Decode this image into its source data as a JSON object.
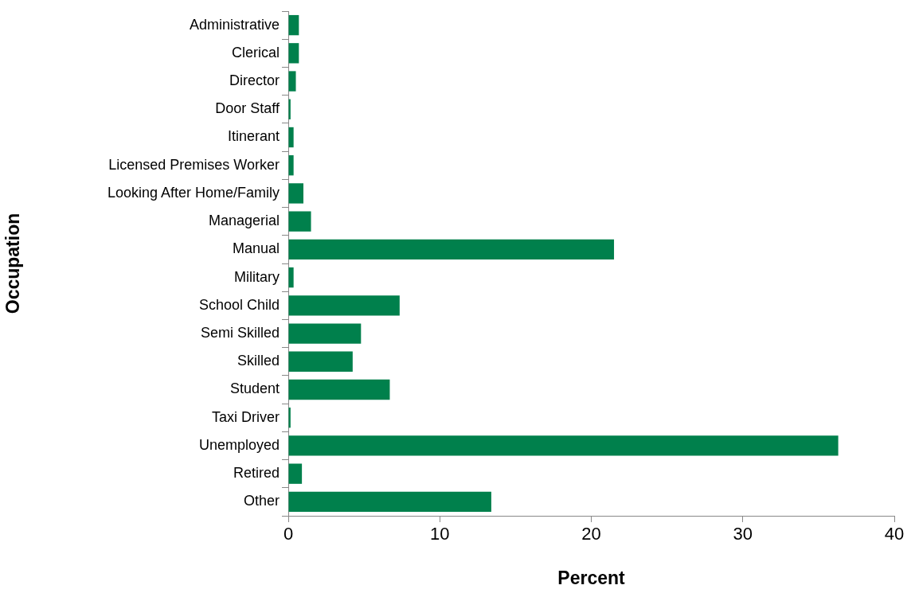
{
  "chart_data": {
    "type": "bar",
    "orientation": "horizontal",
    "categories": [
      "Administrative",
      "Clerical",
      "Director",
      "Door Staff",
      "Itinerant",
      "Licensed Premises Worker",
      "Looking After Home/Family",
      "Managerial",
      "Manual",
      "Military",
      "School Child",
      "Semi Skilled",
      "Skilled",
      "Student",
      "Taxi Driver",
      "Unemployed",
      "Retired",
      "Other"
    ],
    "values": [
      0.7,
      0.7,
      0.5,
      0.15,
      0.35,
      0.35,
      1.0,
      1.5,
      21.5,
      0.35,
      7.35,
      4.8,
      4.25,
      6.7,
      0.15,
      36.3,
      0.9,
      13.4
    ],
    "color": "#00804c",
    "xlim": [
      0,
      40
    ],
    "xticks": [
      0,
      10,
      20,
      30,
      40
    ],
    "xlabel": "Percent",
    "ylabel": "Occupation",
    "grid": false,
    "legend": false
  }
}
